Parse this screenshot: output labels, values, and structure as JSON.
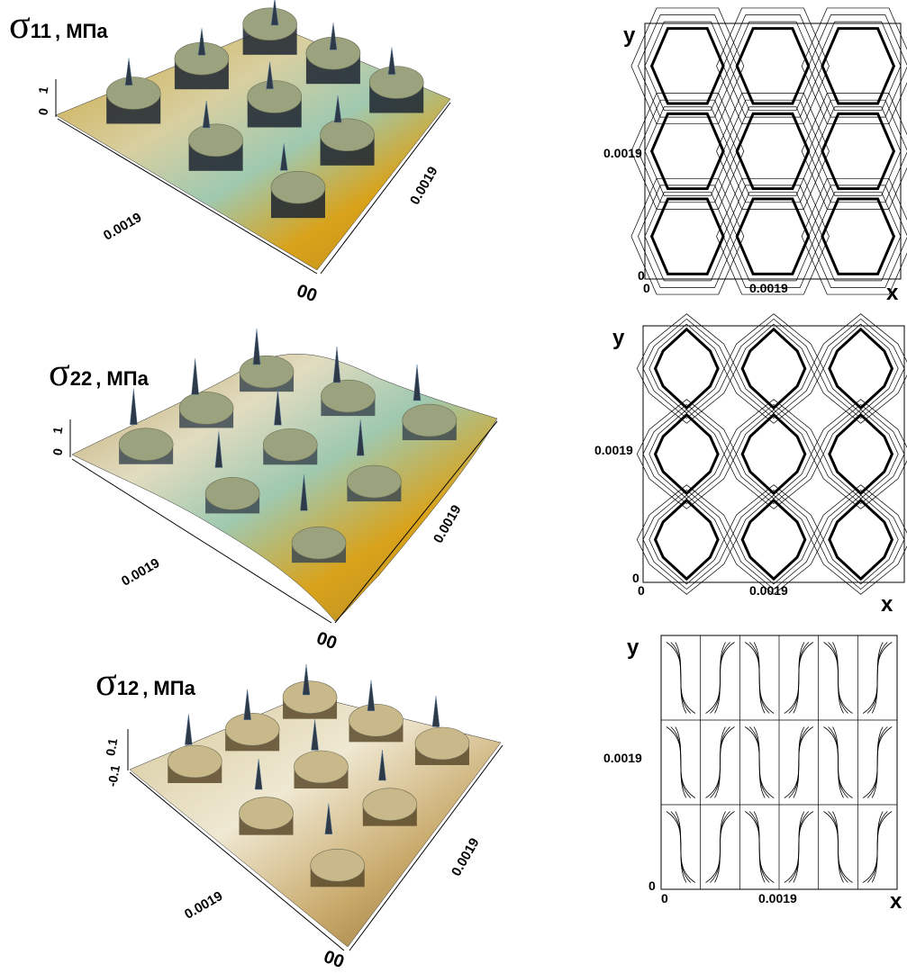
{
  "colors": {
    "gold": "#d9a21a",
    "olive": "#a8a86e",
    "sage": "#9aa27e",
    "mint": "#93cfb0",
    "dark": "#1c2430",
    "beige": "#c8b88a",
    "line": "#000000"
  },
  "plots3d": [
    {
      "title_symbol": "σ",
      "title_sub": "11",
      "title_unit": ", МПа",
      "z_ticks": [
        "1",
        "0"
      ],
      "diag_label": "0.0019",
      "right_label": "0.0019",
      "corner_label": "00"
    },
    {
      "title_symbol": "σ",
      "title_sub": "22",
      "title_unit": ", МПа",
      "z_ticks": [
        "1",
        "0"
      ],
      "diag_label": "0.0019",
      "right_label": "0.0019",
      "corner_label": "00"
    },
    {
      "title_symbol": "σ",
      "title_sub": "12",
      "title_unit": ", МПа",
      "z_ticks": [
        "0.1",
        "-0.1"
      ],
      "diag_label": "0.0019",
      "right_label": "0.0019",
      "corner_label": "00"
    }
  ],
  "contours": [
    {
      "y_axis": "y",
      "x_axis": "x",
      "y_tick": "0.0019",
      "x_tick": "0.0019",
      "origin_y": "0",
      "origin_x": "0"
    },
    {
      "y_axis": "y",
      "x_axis": "x",
      "y_tick": "0.0019",
      "x_tick": "0.0019",
      "origin_y": "0",
      "origin_x": "0"
    },
    {
      "y_axis": "y",
      "x_axis": "x",
      "y_tick": "0.0019",
      "x_tick": "0.0019",
      "origin_y": "0",
      "origin_x": "0"
    }
  ]
}
